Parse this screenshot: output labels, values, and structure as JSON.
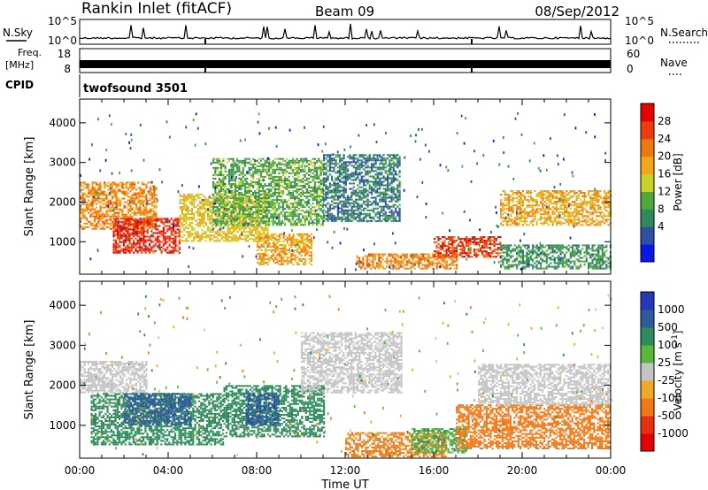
{
  "header": {
    "station": "Rankin Inlet (fitACF)",
    "beam": "Beam 09",
    "date": "08/Sep/2012"
  },
  "nsky": {
    "label": "N.Sky",
    "ticks": [
      "10^5",
      "10^0"
    ],
    "right_label": "N.Search",
    "right_ticks": [
      "10^5",
      "10^0"
    ]
  },
  "freq": {
    "label_top": "Freq.",
    "label_unit": "[MHz]",
    "ticks": [
      "18",
      "8"
    ],
    "right_label": "Nave",
    "right_ticks": [
      "60",
      "0"
    ]
  },
  "cpid": {
    "label": "CPID",
    "value": "twofsound 3501"
  },
  "power_colorbar": {
    "title": "Power [dB]",
    "ticks": [
      "28",
      "24",
      "20",
      "16",
      "12",
      "8",
      "4"
    ],
    "colors": [
      "#0a18e6",
      "#2d4fa8",
      "#2e8a5a",
      "#4fa83b",
      "#c8d22a",
      "#f0a818",
      "#f07810",
      "#ee3c0c",
      "#e60000"
    ]
  },
  "velocity_colorbar": {
    "title": "Velocity [m s",
    "title_sup": "-1",
    "title_end": "]",
    "ticks": [
      "1000",
      "500",
      "100",
      "25",
      "-25",
      "-100",
      "-500",
      "-1000"
    ],
    "colors": [
      "#2438b8",
      "#2e5a9e",
      "#2e8a5a",
      "#58b838",
      "#c4c4c4",
      "#f0a828",
      "#f07818",
      "#e83010",
      "#e60000"
    ]
  },
  "chart_data": [
    {
      "type": "heatmap",
      "panel": "power",
      "ylabel": "Slant Range [km]",
      "yticks": [
        1000,
        2000,
        3000,
        4000
      ],
      "ylim": [
        180,
        4600
      ],
      "xlim": [
        0,
        24
      ],
      "xticks": [
        "00:00",
        "04:00",
        "08:00",
        "12:00",
        "16:00",
        "20:00",
        "00:00"
      ],
      "colorbar": "Power [dB]",
      "bands": [
        {
          "t0": 0.0,
          "t1": 3.5,
          "r0": 1300,
          "r1": 2500,
          "level": 22
        },
        {
          "t0": 1.5,
          "t1": 4.5,
          "r0": 700,
          "r1": 1600,
          "level": 28
        },
        {
          "t0": 4.5,
          "t1": 8.5,
          "r0": 1000,
          "r1": 2200,
          "level": 18
        },
        {
          "t0": 6.0,
          "t1": 11.0,
          "r0": 1400,
          "r1": 3100,
          "level": 12
        },
        {
          "t0": 8.0,
          "t1": 10.5,
          "r0": 400,
          "r1": 1200,
          "level": 20
        },
        {
          "t0": 11.0,
          "t1": 14.5,
          "r0": 1500,
          "r1": 3200,
          "level": 8
        },
        {
          "t0": 12.5,
          "t1": 17.0,
          "r0": 300,
          "r1": 700,
          "level": 22
        },
        {
          "t0": 16.0,
          "t1": 19.0,
          "r0": 600,
          "r1": 1100,
          "level": 27
        },
        {
          "t0": 19.0,
          "t1": 24.0,
          "r0": 1400,
          "r1": 2300,
          "level": 20
        },
        {
          "t0": 19.0,
          "t1": 24.0,
          "r0": 300,
          "r1": 900,
          "level": 10
        }
      ]
    },
    {
      "type": "heatmap",
      "panel": "velocity",
      "ylabel": "Slant Range [km]",
      "yticks": [
        1000,
        2000,
        3000,
        4000
      ],
      "ylim": [
        180,
        4600
      ],
      "xlim": [
        0,
        24
      ],
      "xticks": [
        "00:00",
        "04:00",
        "08:00",
        "12:00",
        "16:00",
        "20:00",
        "00:00"
      ],
      "xlabel": "Time UT",
      "colorbar": "Velocity [m s-1]",
      "bands": [
        {
          "t0": 0.0,
          "t1": 3.0,
          "r0": 1800,
          "r1": 2600,
          "level": 0
        },
        {
          "t0": 0.5,
          "t1": 6.5,
          "r0": 500,
          "r1": 1800,
          "level": 300
        },
        {
          "t0": 2.0,
          "t1": 5.0,
          "r0": 1000,
          "r1": 1800,
          "level": 700
        },
        {
          "t0": 6.5,
          "t1": 11.0,
          "r0": 700,
          "r1": 2000,
          "level": 200
        },
        {
          "t0": 7.5,
          "t1": 9.0,
          "r0": 1000,
          "r1": 1800,
          "level": 800
        },
        {
          "t0": 10.0,
          "t1": 14.5,
          "r0": 1800,
          "r1": 3300,
          "level": 0
        },
        {
          "t0": 12.0,
          "t1": 16.5,
          "r0": 200,
          "r1": 800,
          "level": -150
        },
        {
          "t0": 15.0,
          "t1": 17.5,
          "r0": 300,
          "r1": 900,
          "level": 80
        },
        {
          "t0": 17.0,
          "t1": 24.0,
          "r0": 400,
          "r1": 1500,
          "level": -300
        },
        {
          "t0": 18.0,
          "t1": 24.0,
          "r0": 1500,
          "r1": 2500,
          "level": 0
        }
      ]
    }
  ]
}
